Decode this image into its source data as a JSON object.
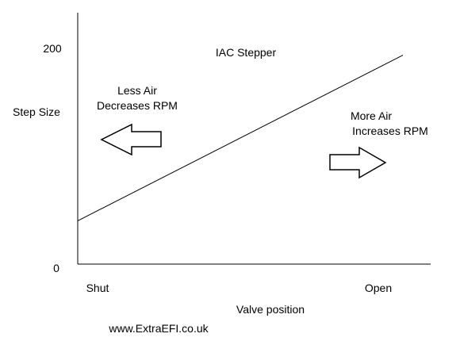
{
  "chart_data": {
    "type": "line",
    "title": "IAC Stepper",
    "xlabel": "Valve position",
    "ylabel": "Step Size",
    "x_tick_labels": [
      "Shut",
      "Open"
    ],
    "y_tick_labels": [
      "0",
      "200"
    ],
    "ylim": [
      0,
      200
    ],
    "xlim": [
      0,
      1
    ],
    "grid": false,
    "series": [
      {
        "x": [
          0,
          1
        ],
        "y": [
          40,
          193
        ]
      }
    ],
    "annotations": {
      "less_air": [
        "Less Air",
        "Decreases RPM"
      ],
      "more_air": [
        "More Air",
        "Increases RPM"
      ]
    }
  },
  "footer": {
    "credit": "www.ExtraEFI.co.uk"
  },
  "colors": {
    "axis": "#000000",
    "line": "#000000",
    "arrow_fill": "#ffffff",
    "arrow_stroke": "#000000",
    "background": "#ffffff"
  }
}
